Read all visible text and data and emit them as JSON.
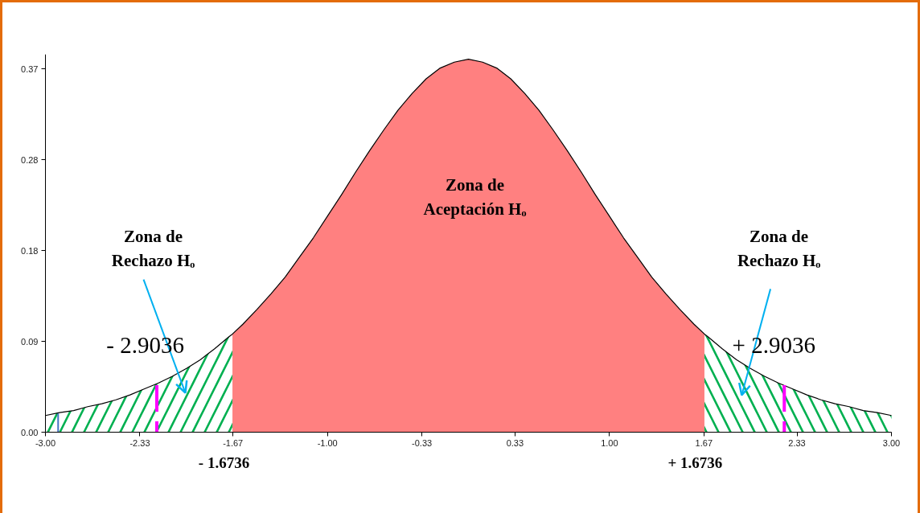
{
  "chart_data": {
    "type": "area",
    "annotations": [
      "Zona de Aceptación Hₒ",
      "Zona de Rechazo Hₒ",
      "Zona de Rechazo Hₒ",
      "- 2.9036",
      "+ 2.9036",
      "- 1.6736",
      "+ 1.6736"
    ],
    "xlim": [
      -3,
      3
    ],
    "ylim": [
      0,
      0.385
    ],
    "xticks": [
      {
        "value": -3,
        "label": "-3.00"
      },
      -2.33,
      -1.67,
      {
        "value": -1,
        "label": "-1.00"
      },
      -0.33,
      0.33,
      {
        "value": 1,
        "label": "1.00"
      },
      1.67,
      2.33,
      {
        "value": 3,
        "label": "3.00"
      }
    ],
    "yticks": [
      {
        "value": 0,
        "label": "0.00"
      },
      {
        "value": 0.0925,
        "label": "0.09"
      },
      {
        "value": 0.185,
        "label": "0.18"
      },
      {
        "value": 0.2775,
        "label": "0.28"
      },
      0.37
    ],
    "series": [
      {
        "color": "#00b050",
        "x": [
          -3,
          -2.9,
          -2.8,
          -2.7,
          -2.6,
          -2.5,
          -2.4,
          -2.3,
          -2.2,
          -2.1,
          -2,
          -1.9,
          -1.8,
          -1.7,
          -1.6736
        ],
        "values": [
          0.017,
          0.02,
          0.022,
          0.026,
          0.029,
          0.033,
          0.038,
          0.044,
          0.05,
          0.057,
          0.065,
          0.074,
          0.085,
          0.097,
          0.1
        ]
      },
      {
        "color": "#ff8080",
        "x": [
          -1.6736,
          -1.6,
          -1.5,
          -1.4,
          -1.3,
          -1.2,
          -1.1,
          -1,
          -0.9,
          -0.8,
          -0.7,
          -0.6,
          -0.5,
          -0.4,
          -0.3,
          -0.2,
          -0.1,
          0,
          0.1,
          0.2,
          0.3,
          0.4,
          0.5,
          0.6,
          0.7,
          0.8,
          0.9,
          1,
          1.1,
          1.2,
          1.3,
          1.4,
          1.5,
          1.6,
          1.6736
        ],
        "values": [
          0.1,
          0.11,
          0.125,
          0.141,
          0.158,
          0.178,
          0.198,
          0.22,
          0.242,
          0.265,
          0.287,
          0.308,
          0.328,
          0.345,
          0.36,
          0.371,
          0.377,
          0.38,
          0.377,
          0.371,
          0.36,
          0.345,
          0.328,
          0.308,
          0.287,
          0.265,
          0.242,
          0.22,
          0.198,
          0.178,
          0.158,
          0.141,
          0.125,
          0.11,
          0.1
        ]
      },
      {
        "color": "#00b050",
        "x": [
          1.6736,
          1.7,
          1.8,
          1.9,
          2,
          2.1,
          2.2,
          2.3,
          2.4,
          2.5,
          2.6,
          2.7,
          2.8,
          2.9,
          3
        ],
        "values": [
          0.1,
          0.097,
          0.085,
          0.074,
          0.065,
          0.057,
          0.05,
          0.044,
          0.038,
          0.033,
          0.029,
          0.026,
          0.022,
          0.02,
          0.017
        ]
      },
      {
        "type": "line",
        "color": "#000000",
        "x": [
          -3,
          -2.9,
          -2.8,
          -2.7,
          -2.6,
          -2.5,
          -2.4,
          -2.3,
          -2.2,
          -2.1,
          -2,
          -1.9,
          -1.8,
          -1.7,
          -1.6736,
          -1.6,
          -1.5,
          -1.4,
          -1.3,
          -1.2,
          -1.1,
          -1,
          -0.9,
          -0.8,
          -0.7,
          -0.6,
          -0.5,
          -0.4,
          -0.3,
          -0.2,
          -0.1,
          0,
          0.1,
          0.2,
          0.3,
          0.4,
          0.5,
          0.6,
          0.7,
          0.8,
          0.9,
          1,
          1.1,
          1.2,
          1.3,
          1.4,
          1.5,
          1.6,
          1.6736,
          1.7,
          1.8,
          1.9,
          2,
          2.1,
          2.2,
          2.3,
          2.4,
          2.5,
          2.6,
          2.7,
          2.8,
          2.9,
          3
        ],
        "values": [
          0.017,
          0.02,
          0.022,
          0.026,
          0.029,
          0.033,
          0.038,
          0.044,
          0.05,
          0.057,
          0.065,
          0.074,
          0.085,
          0.097,
          0.1,
          0.11,
          0.125,
          0.141,
          0.158,
          0.178,
          0.198,
          0.22,
          0.242,
          0.265,
          0.287,
          0.308,
          0.328,
          0.345,
          0.36,
          0.371,
          0.377,
          0.38,
          0.377,
          0.371,
          0.36,
          0.345,
          0.328,
          0.308,
          0.287,
          0.265,
          0.242,
          0.22,
          0.198,
          0.178,
          0.158,
          0.141,
          0.125,
          0.11,
          0.1,
          0.097,
          0.085,
          0.074,
          0.065,
          0.057,
          0.05,
          0.044,
          0.038,
          0.033,
          0.029,
          0.026,
          0.022,
          0.02,
          0.017
        ]
      },
      {
        "type": "line",
        "color": "#4472c4",
        "x": [
          -2.91,
          -2.91
        ],
        "values": [
          0.019,
          0
        ]
      },
      {
        "type": "line",
        "color": "#ff00ff",
        "line_style": "dashed",
        "x": [
          -2.21,
          -2.21
        ],
        "values": [
          0.048,
          0
        ]
      },
      {
        "type": "line",
        "color": "#ff00ff",
        "line_style": "dashed",
        "x": [
          2.24,
          2.24
        ],
        "values": [
          0.048,
          0
        ]
      }
    ]
  }
}
